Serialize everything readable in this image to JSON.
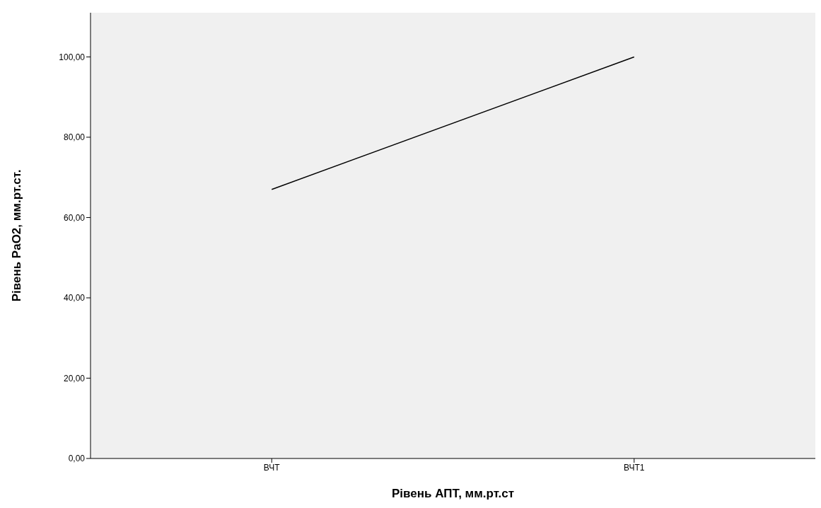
{
  "chart_data": {
    "type": "line",
    "xlabel": "Рівень АПТ, мм.рт.ст",
    "ylabel": "Рівень PaO2, мм.рт.ст.",
    "categories": [
      "ВЧТ",
      "ВЧТ1"
    ],
    "series": [
      {
        "color": "#000000",
        "values": [
          67,
          100
        ]
      }
    ],
    "ylim": [
      0,
      111
    ],
    "yticks": [
      {
        "value": 0,
        "label": "0,00"
      },
      {
        "value": 20,
        "label": "20,00"
      },
      {
        "value": 40,
        "label": "40,00"
      },
      {
        "value": 60,
        "label": "60,00"
      },
      {
        "value": 80,
        "label": "80,00"
      },
      {
        "value": 100,
        "label": "100,00"
      }
    ]
  }
}
